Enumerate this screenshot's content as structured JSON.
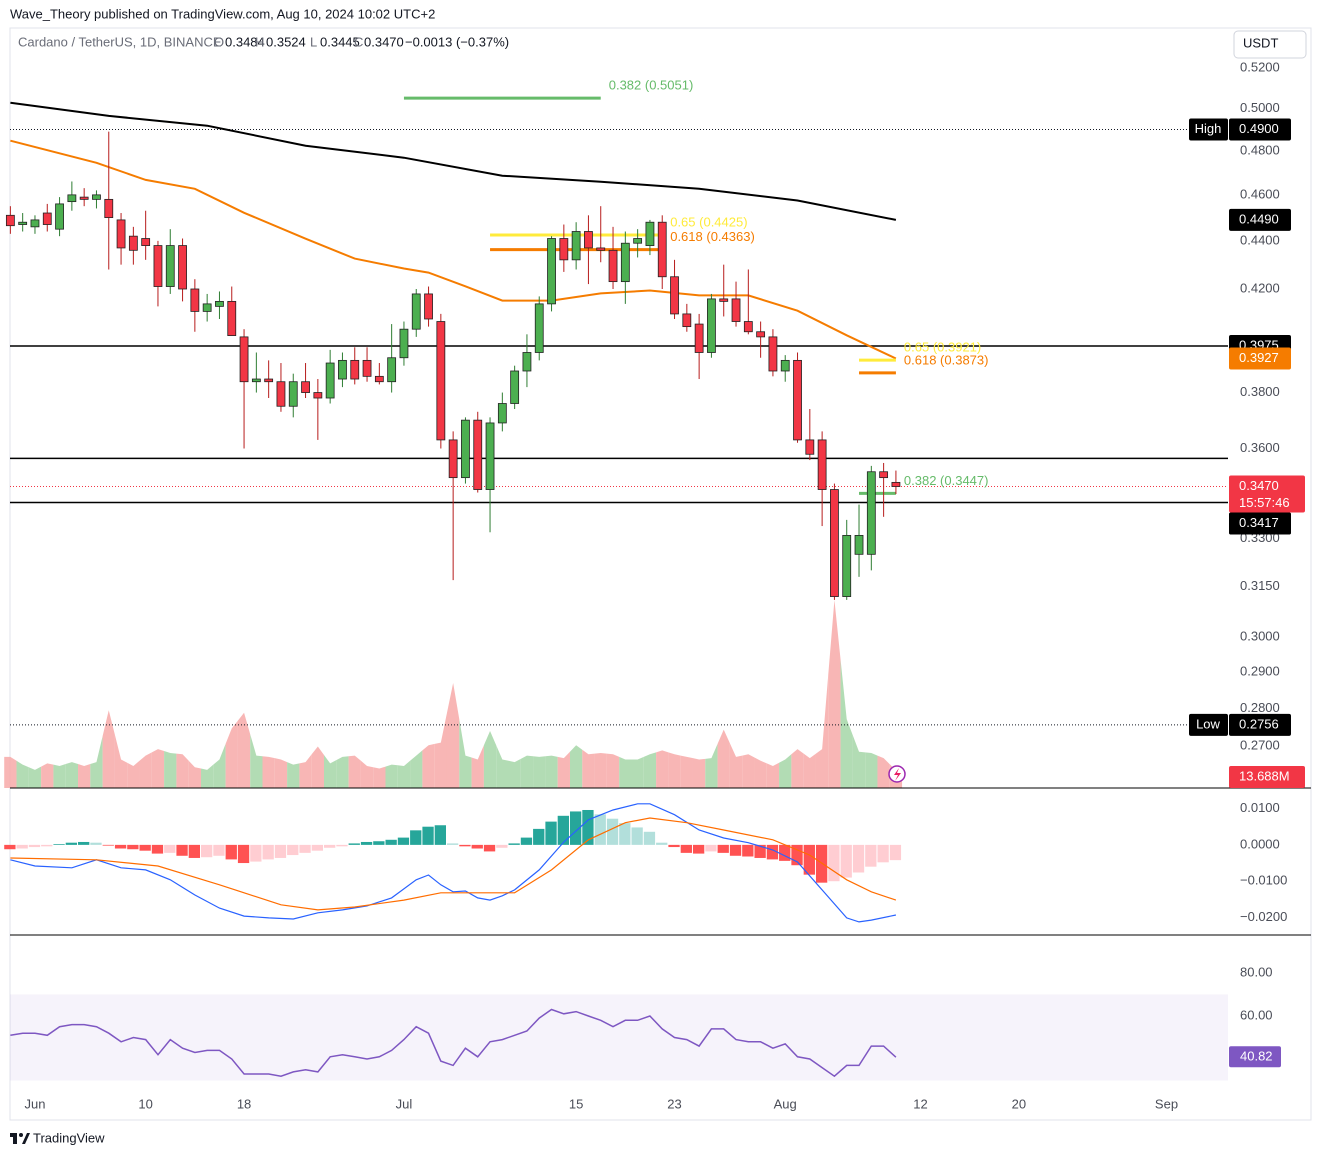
{
  "header": {
    "published": "Wave_Theory published on TradingView.com, Aug 10, 2024 10:02 UTC+2",
    "symbol": "Cardano / TetherUS, 1D, BINANCE",
    "ohlc": [
      {
        "key": "O",
        "value": "0.3484"
      },
      {
        "key": "H",
        "value": "0.3524"
      },
      {
        "key": "L",
        "value": "0.3445"
      },
      {
        "key": "C",
        "value": "0.3470"
      }
    ],
    "change": "−0.0013 (−0.37%)",
    "currency": "USDT",
    "brand": "TradingView"
  },
  "chart_data": [
    {
      "type": "candlestick",
      "log": true,
      "x": [
        -2,
        -1,
        0,
        1,
        2,
        3,
        4,
        5,
        6,
        7,
        8,
        9,
        10,
        11,
        12,
        13,
        14,
        15,
        16,
        17,
        18,
        19,
        20,
        21,
        22,
        23,
        24,
        25,
        26,
        27,
        28,
        29,
        30,
        31,
        32,
        33,
        34,
        35,
        36,
        37,
        38,
        39,
        40,
        41,
        42,
        43,
        44,
        45,
        46,
        47,
        48,
        49,
        50,
        51,
        52,
        53,
        54,
        55,
        56,
        57,
        58,
        59,
        60,
        61,
        62,
        63,
        64,
        65,
        66,
        67,
        68,
        69,
        70
      ],
      "open": [
        0.451,
        0.447,
        0.446,
        0.452,
        0.445,
        0.457,
        0.459,
        0.458,
        0.458,
        0.449,
        0.442,
        0.441,
        0.438,
        0.421,
        0.438,
        0.42,
        0.411,
        0.413,
        0.415,
        0.401,
        0.384,
        0.385,
        0.384,
        0.375,
        0.384,
        0.38,
        0.378,
        0.385,
        0.392,
        0.392,
        0.386,
        0.384,
        0.393,
        0.404,
        0.418,
        0.407,
        0.363,
        0.35,
        0.37,
        0.346,
        0.369,
        0.376,
        0.388,
        0.395,
        0.414,
        0.441,
        0.432,
        0.444,
        0.437,
        0.436,
        0.423,
        0.439,
        0.438,
        0.448,
        0.425,
        0.41,
        0.406,
        0.395,
        0.416,
        0.416,
        0.407,
        0.403,
        0.401,
        0.388,
        0.392,
        0.363,
        0.363,
        0.346,
        0.312,
        0.325,
        0.325,
        0.352,
        0.3484
      ],
      "high": [
        0.455,
        0.452,
        0.451,
        0.456,
        0.459,
        0.466,
        0.463,
        0.462,
        0.489,
        0.452,
        0.446,
        0.453,
        0.44,
        0.445,
        0.441,
        0.424,
        0.418,
        0.419,
        0.421,
        0.404,
        0.395,
        0.392,
        0.391,
        0.387,
        0.391,
        0.385,
        0.396,
        0.395,
        0.397,
        0.397,
        0.391,
        0.406,
        0.407,
        0.42,
        0.421,
        0.41,
        0.366,
        0.371,
        0.373,
        0.371,
        0.38,
        0.39,
        0.402,
        0.417,
        0.442,
        0.447,
        0.448,
        0.451,
        0.455,
        0.446,
        0.444,
        0.445,
        0.449,
        0.451,
        0.432,
        0.414,
        0.41,
        0.418,
        0.43,
        0.423,
        0.428,
        0.407,
        0.404,
        0.394,
        0.395,
        0.374,
        0.366,
        0.348,
        0.336,
        0.341,
        0.354,
        0.355,
        0.3524
      ],
      "low": [
        0.443,
        0.444,
        0.443,
        0.444,
        0.442,
        0.453,
        0.455,
        0.454,
        0.428,
        0.43,
        0.43,
        0.432,
        0.413,
        0.418,
        0.415,
        0.403,
        0.407,
        0.408,
        0.402,
        0.36,
        0.38,
        0.378,
        0.373,
        0.371,
        0.378,
        0.363,
        0.376,
        0.382,
        0.383,
        0.384,
        0.383,
        0.38,
        0.39,
        0.401,
        0.405,
        0.36,
        0.317,
        0.348,
        0.345,
        0.332,
        0.366,
        0.374,
        0.382,
        0.392,
        0.411,
        0.427,
        0.428,
        0.422,
        0.431,
        0.42,
        0.414,
        0.433,
        0.434,
        0.42,
        0.408,
        0.403,
        0.385,
        0.393,
        0.409,
        0.405,
        0.402,
        0.393,
        0.386,
        0.384,
        0.362,
        0.356,
        0.334,
        0.311,
        0.311,
        0.318,
        0.32,
        0.337,
        0.3445
      ],
      "close": [
        0.4465,
        0.448,
        0.449,
        0.447,
        0.456,
        0.46,
        0.458,
        0.46,
        0.45,
        0.437,
        0.436,
        0.438,
        0.421,
        0.438,
        0.42,
        0.411,
        0.414,
        0.415,
        0.4015,
        0.384,
        0.385,
        0.384,
        0.375,
        0.384,
        0.38,
        0.378,
        0.391,
        0.392,
        0.385,
        0.386,
        0.384,
        0.393,
        0.404,
        0.418,
        0.408,
        0.363,
        0.35,
        0.37,
        0.346,
        0.369,
        0.376,
        0.388,
        0.395,
        0.414,
        0.441,
        0.432,
        0.444,
        0.437,
        0.436,
        0.423,
        0.439,
        0.441,
        0.448,
        0.425,
        0.41,
        0.405,
        0.395,
        0.416,
        0.415,
        0.407,
        0.403,
        0.401,
        0.388,
        0.392,
        0.363,
        0.358,
        0.346,
        0.312,
        0.331,
        0.331,
        0.352,
        0.35,
        0.347
      ],
      "up_color": "#4caf50",
      "down_color": "#f23645",
      "xlim": [
        -2.03,
        97
      ],
      "xticks": [
        {
          "value": 0,
          "label": "Jun"
        },
        {
          "value": 9,
          "label": "10"
        },
        {
          "value": 17,
          "label": "18"
        },
        {
          "value": 30,
          "label": "Jul"
        },
        {
          "value": 44,
          "label": "15"
        },
        {
          "value": 52,
          "label": "23"
        },
        {
          "value": 61,
          "label": "Aug"
        },
        {
          "value": 72,
          "label": "12"
        },
        {
          "value": 80,
          "label": "20"
        },
        {
          "value": 92,
          "label": "Sep"
        }
      ],
      "ylim": [
        0.2593,
        0.5405
      ],
      "yticks": [
        {
          "value": 0.52,
          "label": "0.5200"
        },
        {
          "value": 0.5,
          "label": "0.5000"
        },
        {
          "value": 0.48,
          "label": "0.4800"
        },
        {
          "value": 0.46,
          "label": "0.4600"
        },
        {
          "value": 0.44,
          "label": "0.4400"
        },
        {
          "value": 0.42,
          "label": "0.4200"
        },
        {
          "value": 0.38,
          "label": "0.3800"
        },
        {
          "value": 0.36,
          "label": "0.3600"
        },
        {
          "value": 0.33,
          "label": "0.3300"
        },
        {
          "value": 0.315,
          "label": "0.3150"
        },
        {
          "value": 0.3,
          "label": "0.3000"
        },
        {
          "value": 0.29,
          "label": "0.2900"
        },
        {
          "value": 0.28,
          "label": "0.2800"
        },
        {
          "value": 0.27,
          "label": "0.2700"
        }
      ],
      "moving_averages": [
        {
          "color": "#000000",
          "x": [
            -2,
            6,
            14,
            22,
            30,
            38,
            46,
            54,
            62,
            70
          ],
          "values": [
            0.5028,
            0.4965,
            0.4918,
            0.4824,
            0.4768,
            0.4686,
            0.4659,
            0.4627,
            0.4575,
            0.449
          ],
          "last_label": "0.4490"
        },
        {
          "color": "#f57c00",
          "x": [
            -2,
            5,
            9,
            13,
            17,
            22,
            26,
            30,
            32,
            35,
            38,
            42,
            46,
            50,
            54,
            58,
            62,
            66,
            70
          ],
          "values": [
            0.4847,
            0.4745,
            0.4667,
            0.4627,
            0.4521,
            0.4409,
            0.4325,
            0.4284,
            0.4267,
            0.4211,
            0.4153,
            0.4153,
            0.4182,
            0.4194,
            0.4174,
            0.4174,
            0.4113,
            0.4016,
            0.3927
          ],
          "last_label": "0.3927"
        }
      ],
      "levels": [
        {
          "value": 0.3975,
          "label": "0.3975"
        },
        {
          "value": 0.3566,
          "label": "0.3566"
        },
        {
          "value": 0.3417,
          "label": "0.3417"
        }
      ],
      "extremes": [
        {
          "name": "High",
          "value": 0.49,
          "label": "0.4900"
        },
        {
          "name": "Low",
          "value": 0.2756,
          "label": "0.2756"
        }
      ],
      "last_price": {
        "value": 0.347,
        "label": "0.3470",
        "countdown": "15:57:46",
        "color": "#f23645"
      },
      "fibs": [
        {
          "label": "0.382 (0.5051)",
          "value": 0.5051,
          "x": [
            30,
            46
          ],
          "color": "#66bb6a"
        },
        {
          "label": "0.65 (0.4425)",
          "value": 0.4425,
          "x": [
            37,
            51
          ],
          "color": "#ffeb3b"
        },
        {
          "label": "0.618 (0.4363)",
          "value": 0.4363,
          "x": [
            37,
            51
          ],
          "color": "#f57c00"
        },
        {
          "label": "0.65 (0.3921)",
          "value": 0.3921,
          "x": [
            67,
            70
          ],
          "color": "#ffeb3b"
        },
        {
          "label": "0.618 (0.3873)",
          "value": 0.3873,
          "x": [
            67,
            70
          ],
          "color": "#f57c00"
        },
        {
          "label": "0.382 (0.3447)",
          "value": 0.3447,
          "x": [
            67,
            70
          ],
          "color": "#66bb6a"
        }
      ],
      "volume": {
        "values": [
          24,
          18,
          14,
          19,
          17,
          20,
          17,
          20,
          60,
          22,
          17,
          25,
          30,
          27,
          26,
          16,
          14,
          22,
          46,
          58,
          25,
          24,
          22,
          18,
          20,
          32,
          19,
          24,
          25,
          17,
          15,
          18,
          17,
          25,
          33,
          35,
          81,
          25,
          22,
          44,
          22,
          20,
          25,
          24,
          25,
          23,
          33,
          26,
          27,
          26,
          22,
          22,
          26,
          29,
          26,
          24,
          22,
          23,
          45,
          24,
          26,
          21,
          17,
          22,
          30,
          23,
          30,
          145,
          53,
          28,
          27,
          23,
          13.688
        ],
        "ylim": [
          0,
          145
        ],
        "up_color": "#a5d6a7",
        "down_color": "#f7a9a8",
        "last_label": "13.688M"
      }
    },
    {
      "type": "macd",
      "histogram": [
        -0.0012,
        -0.001,
        -0.0006,
        -0.0004,
        0.0002,
        0.0006,
        0.0008,
        0.0006,
        -0.0002,
        -0.001,
        -0.0012,
        -0.0016,
        -0.0024,
        -0.0022,
        -0.003,
        -0.0036,
        -0.0034,
        -0.003,
        -0.004,
        -0.005,
        -0.0046,
        -0.004,
        -0.0036,
        -0.0028,
        -0.0022,
        -0.0016,
        -0.0008,
        -0.0004,
        0.0004,
        0.0008,
        0.001,
        0.0014,
        0.002,
        0.004,
        0.005,
        0.0054,
        0.0004,
        -0.0004,
        -0.001,
        -0.0018,
        -0.0008,
        0.0004,
        0.002,
        0.0044,
        0.0064,
        0.008,
        0.0092,
        0.0096,
        0.0084,
        0.0072,
        0.006,
        0.0048,
        0.0036,
        0.0006,
        -0.0006,
        -0.0022,
        -0.0024,
        -0.0018,
        -0.0022,
        -0.003,
        -0.0032,
        -0.0036,
        -0.004,
        -0.0044,
        -0.0056,
        -0.0082,
        -0.0104,
        -0.01,
        -0.009,
        -0.0076,
        -0.006,
        -0.0048,
        -0.0042
      ],
      "hist_colors": {
        "up_rising": "#26a69a",
        "up_falling": "#b2dfdb",
        "down_falling": "#ff5252",
        "down_rising": "#ffcdd2"
      },
      "lines": [
        {
          "color": "#2962ff",
          "x": [
            -2,
            0,
            3,
            5,
            7,
            9,
            11,
            13,
            15,
            17,
            19,
            21,
            23,
            25,
            27,
            29,
            31,
            32,
            33,
            34,
            35,
            36,
            37,
            38,
            39,
            41,
            43,
            45,
            47,
            49,
            50,
            52,
            54,
            56,
            58,
            60,
            62,
            64,
            66,
            67,
            68,
            70
          ],
          "values": [
            -0.0041,
            -0.0058,
            -0.0063,
            -0.0041,
            -0.0063,
            -0.0069,
            -0.0096,
            -0.0138,
            -0.0174,
            -0.0196,
            -0.0201,
            -0.0204,
            -0.0187,
            -0.0179,
            -0.0168,
            -0.0146,
            -0.0096,
            -0.0083,
            -0.011,
            -0.0129,
            -0.0127,
            -0.0146,
            -0.0152,
            -0.014,
            -0.0124,
            -0.0069,
            0.0008,
            0.0069,
            0.0096,
            0.0113,
            0.0113,
            0.0083,
            0.0041,
            0.0019,
            0.0006,
            -0.0014,
            -0.0047,
            -0.0124,
            -0.0201,
            -0.0212,
            -0.0207,
            -0.0193
          ]
        },
        {
          "color": "#ff6d00",
          "x": [
            -2,
            5,
            10,
            15,
            20,
            23,
            26,
            30,
            33,
            36,
            39,
            42,
            45,
            48,
            50,
            53,
            56,
            60,
            63,
            66,
            68,
            70
          ],
          "values": [
            -0.0036,
            -0.0041,
            -0.0058,
            -0.011,
            -0.0165,
            -0.0179,
            -0.0171,
            -0.0152,
            -0.0132,
            -0.0132,
            -0.0132,
            -0.0069,
            0.0014,
            0.0061,
            0.0074,
            0.0061,
            0.0041,
            0.0014,
            -0.0028,
            -0.0096,
            -0.0129,
            -0.0152
          ]
        }
      ],
      "ylim": [
        -0.0248,
        0.0151
      ],
      "yticks": [
        {
          "value": 0.01,
          "label": "0.0100"
        },
        {
          "value": 0,
          "label": "0.0000"
        },
        {
          "value": -0.01,
          "label": "−0.0100"
        },
        {
          "value": -0.02,
          "label": "−0.0200"
        }
      ]
    },
    {
      "type": "rsi",
      "values": [
        51,
        52,
        52,
        51,
        55,
        56,
        56,
        55,
        52,
        48,
        50,
        49,
        42,
        49,
        45,
        43,
        44,
        44,
        40,
        33,
        33,
        33,
        32,
        34,
        35,
        34,
        41,
        42,
        41,
        40,
        41,
        44,
        49,
        55,
        52,
        39,
        37,
        45,
        41,
        48,
        49,
        51,
        53,
        59,
        63,
        61,
        62,
        60,
        58,
        55,
        58,
        58,
        60,
        54,
        50,
        49,
        46,
        54,
        54,
        49,
        48,
        48,
        45,
        47,
        41,
        40,
        36,
        32,
        37,
        37,
        46,
        46,
        40.82
      ],
      "color": "#7e57c2",
      "band": [
        30,
        70
      ],
      "ylim": [
        24.65,
        96.7
      ],
      "yticks": [
        {
          "value": 80,
          "label": "80.00"
        },
        {
          "value": 60,
          "label": "60.00"
        }
      ]
    }
  ]
}
